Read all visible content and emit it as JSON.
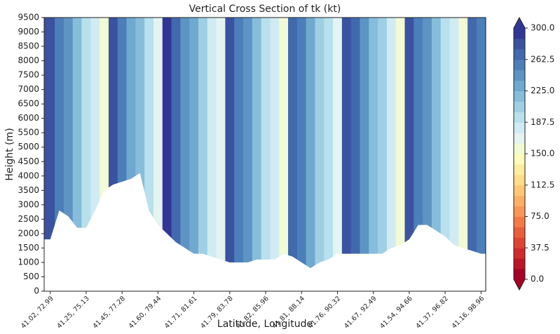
{
  "chart_data": {
    "type": "contour",
    "title": "Vertical Cross Section of tk (kt)",
    "x_label": "Latitude, Longitude",
    "y_label": "Height (m)",
    "x": [
      0,
      0.25,
      0.5,
      0.75,
      1,
      1.25,
      1.5,
      1.75,
      2,
      2.25,
      2.5,
      2.75,
      3,
      3.25,
      3.5,
      3.75,
      4,
      4.25,
      4.5,
      4.75,
      5,
      5.25,
      5.5,
      5.75,
      6,
      6.25,
      6.5,
      6.75,
      7,
      7.25,
      7.5,
      7.75,
      8,
      8.25,
      8.5,
      8.75,
      9,
      9.25,
      9.5,
      9.75,
      10,
      10.25,
      10.5,
      10.75,
      11,
      11.25,
      11.5,
      11.75,
      12
    ],
    "values": [
      282,
      260,
      239,
      218,
      197,
      175,
      154,
      277,
      256,
      235,
      214,
      192,
      171,
      290,
      269,
      248,
      226,
      205,
      184,
      163,
      282,
      260,
      239,
      218,
      197,
      175,
      154,
      273,
      252,
      231,
      209,
      188,
      167,
      286,
      265,
      243,
      222,
      201,
      180,
      158,
      282,
      260,
      239,
      218,
      197,
      175,
      154,
      273,
      252
    ],
    "terrain_height": [
      1800,
      2800,
      2600,
      2200,
      2200,
      2800,
      3500,
      3700,
      3800,
      3900,
      4100,
      2800,
      2300,
      2000,
      1700,
      1500,
      1300,
      1300,
      1200,
      1100,
      1000,
      1000,
      1000,
      1100,
      1100,
      1100,
      1300,
      1200,
      1000,
      800,
      1000,
      1100,
      1300,
      1300,
      1300,
      1300,
      1300,
      1300,
      1500,
      1600,
      1800,
      2300,
      2300,
      2100,
      1900,
      1600,
      1500,
      1400,
      1300
    ],
    "xlim": [
      -0.17,
      12.13
    ],
    "xticks": [
      {
        "value": 0,
        "label": "41.02, 72.99"
      },
      {
        "value": 1,
        "label": "41.25, 75.13"
      },
      {
        "value": 2,
        "label": "41.45, 77.28"
      },
      {
        "value": 3,
        "label": "41.60, 79.44"
      },
      {
        "value": 4,
        "label": "41.71, 81.61"
      },
      {
        "value": 5,
        "label": "41.79, 83.78"
      },
      {
        "value": 6,
        "label": "41.82, 85.96"
      },
      {
        "value": 7,
        "label": "41.81, 88.14"
      },
      {
        "value": 8,
        "label": "41.76, 90.32"
      },
      {
        "value": 9,
        "label": "41.67, 92.49"
      },
      {
        "value": 10,
        "label": "41.54, 94.66"
      },
      {
        "value": 11,
        "label": "41.37, 96.82"
      },
      {
        "value": 12,
        "label": "41.16, 98.96"
      }
    ],
    "ylim": [
      0,
      9500
    ],
    "yticks": [
      0,
      500,
      1000,
      1500,
      2000,
      2500,
      3000,
      3500,
      4000,
      4500,
      5000,
      5500,
      6000,
      6500,
      7000,
      7500,
      8000,
      8500,
      9000,
      9500
    ],
    "colorbar": {
      "clim": [
        0,
        300
      ],
      "ticks": [
        {
          "value": 0,
          "label": "0.0"
        },
        37.5,
        {
          "value": 75,
          "label": "75.0"
        },
        112.5,
        {
          "value": 150,
          "label": "150.0"
        },
        187.5,
        {
          "value": 225,
          "label": "225.0"
        },
        262.5,
        {
          "value": 300,
          "label": "300.0"
        }
      ],
      "colors": [
        "#a50026",
        "#bb1526",
        "#d02a2c",
        "#de4431",
        "#ec5d3b",
        "#f57a48",
        "#fa9656",
        "#fcb065",
        "#fdc776",
        "#fedc88",
        "#feec9f",
        "#fffbb9",
        "#f2fad3",
        "#e4f4f1",
        "#d0ebf3",
        "#b8e0ed",
        "#9ecfe4",
        "#86bdda",
        "#70a9cf",
        "#5d94c4",
        "#4c7fb9",
        "#4169ad",
        "#3a529f",
        "#313695"
      ],
      "under_color": "#a50026",
      "over_color": "#313695"
    }
  }
}
